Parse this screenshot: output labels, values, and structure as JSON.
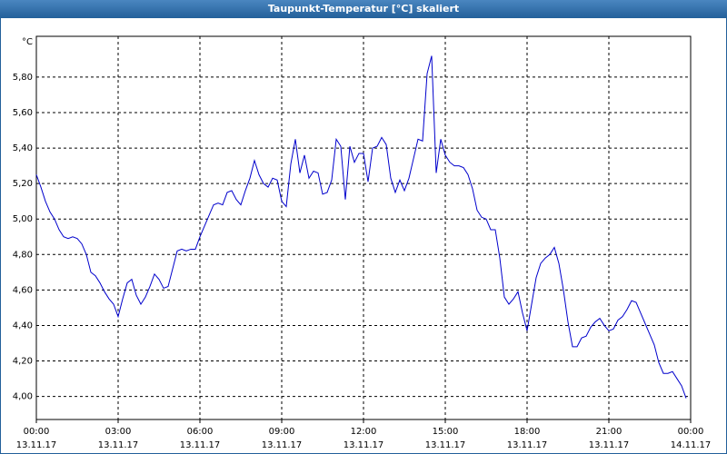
{
  "chart_data": {
    "type": "line",
    "title": "Taupunkt-Temperatur [°C] skaliert",
    "y_unit": "°C",
    "x": [
      0,
      10,
      20,
      30,
      40,
      50,
      60,
      70,
      80,
      90,
      100,
      110,
      120,
      130,
      140,
      150,
      160,
      170,
      180,
      190,
      200,
      210,
      220,
      230,
      240,
      250,
      260,
      270,
      280,
      290,
      300,
      310,
      320,
      330,
      340,
      350,
      360,
      370,
      380,
      390,
      400,
      410,
      420,
      430,
      440,
      450,
      460,
      470,
      480,
      490,
      500,
      510,
      520,
      530,
      540,
      550,
      560,
      570,
      580,
      590,
      600,
      610,
      620,
      630,
      640,
      650,
      660,
      670,
      680,
      690,
      700,
      710,
      720,
      730,
      740,
      750,
      760,
      770,
      780,
      790,
      800,
      810,
      820,
      830,
      840,
      850,
      860,
      870,
      880,
      890,
      900,
      910,
      920,
      930,
      940,
      950,
      960,
      970,
      980,
      990,
      1000,
      1010,
      1020,
      1030,
      1040,
      1050,
      1060,
      1070,
      1080,
      1090,
      1100,
      1110,
      1120,
      1130,
      1140,
      1150,
      1160,
      1170,
      1180,
      1190,
      1200,
      1210,
      1220,
      1230,
      1240,
      1250,
      1260,
      1270,
      1280,
      1290,
      1300,
      1310,
      1320,
      1330,
      1340,
      1350,
      1360,
      1370,
      1380,
      1390,
      1400,
      1410,
      1420,
      1430
    ],
    "series": [
      {
        "color": "#0000cc",
        "values": [
          5.25,
          5.18,
          5.1,
          5.04,
          5.0,
          4.94,
          4.9,
          4.89,
          4.9,
          4.89,
          4.86,
          4.8,
          4.7,
          4.68,
          4.64,
          4.59,
          4.55,
          4.52,
          4.45,
          4.55,
          4.64,
          4.66,
          4.57,
          4.52,
          4.56,
          4.62,
          4.69,
          4.66,
          4.61,
          4.62,
          4.72,
          4.82,
          4.83,
          4.82,
          4.83,
          4.83,
          4.9,
          4.96,
          5.02,
          5.08,
          5.09,
          5.08,
          5.15,
          5.16,
          5.11,
          5.08,
          5.16,
          5.23,
          5.33,
          5.25,
          5.2,
          5.18,
          5.23,
          5.22,
          5.1,
          5.07,
          5.31,
          5.45,
          5.26,
          5.36,
          5.23,
          5.27,
          5.26,
          5.14,
          5.15,
          5.22,
          5.45,
          5.41,
          5.11,
          5.41,
          5.32,
          5.37,
          5.37,
          5.21,
          5.4,
          5.41,
          5.46,
          5.42,
          5.23,
          5.15,
          5.22,
          5.16,
          5.23,
          5.34,
          5.45,
          5.44,
          5.82,
          5.92,
          5.26,
          5.45,
          5.36,
          5.32,
          5.3,
          5.3,
          5.29,
          5.25,
          5.17,
          5.05,
          5.01,
          5.0,
          4.94,
          4.94,
          4.78,
          4.56,
          4.52,
          4.55,
          4.59,
          4.47,
          4.37,
          4.52,
          4.67,
          4.75,
          4.78,
          4.8,
          4.84,
          4.75,
          4.6,
          4.42,
          4.28,
          4.28,
          4.33,
          4.34,
          4.39,
          4.42,
          4.44,
          4.4,
          4.37,
          4.38,
          4.43,
          4.45,
          4.49,
          4.54,
          4.53,
          4.47,
          4.41,
          4.35,
          4.29,
          4.19,
          4.13,
          4.13,
          4.14,
          4.1,
          4.06,
          3.99
        ]
      }
    ],
    "xlim": [
      0,
      1440
    ],
    "xticks": [
      {
        "value": 0,
        "label": "00:00",
        "date": "13.11.17"
      },
      {
        "value": 180,
        "label": "03:00",
        "date": "13.11.17"
      },
      {
        "value": 360,
        "label": "06:00",
        "date": "13.11.17"
      },
      {
        "value": 540,
        "label": "09:00",
        "date": "13.11.17"
      },
      {
        "value": 720,
        "label": "12:00",
        "date": "13.11.17"
      },
      {
        "value": 900,
        "label": "15:00",
        "date": "13.11.17"
      },
      {
        "value": 1080,
        "label": "18:00",
        "date": "13.11.17"
      },
      {
        "value": 1260,
        "label": "21:00",
        "date": "13.11.17"
      },
      {
        "value": 1440,
        "label": "00:00",
        "date": "14.11.17"
      }
    ],
    "ylim": [
      3.87,
      6.03
    ],
    "yticks": [
      {
        "value": 4.0,
        "label": "4,00"
      },
      {
        "value": 4.2,
        "label": "4,20"
      },
      {
        "value": 4.4,
        "label": "4,40"
      },
      {
        "value": 4.6,
        "label": "4,60"
      },
      {
        "value": 4.8,
        "label": "4,80"
      },
      {
        "value": 5.0,
        "label": "5,00"
      },
      {
        "value": 5.2,
        "label": "5,20"
      },
      {
        "value": 5.4,
        "label": "5,40"
      },
      {
        "value": 5.6,
        "label": "5,60"
      },
      {
        "value": 5.8,
        "label": "5,80"
      }
    ],
    "grid": true
  }
}
